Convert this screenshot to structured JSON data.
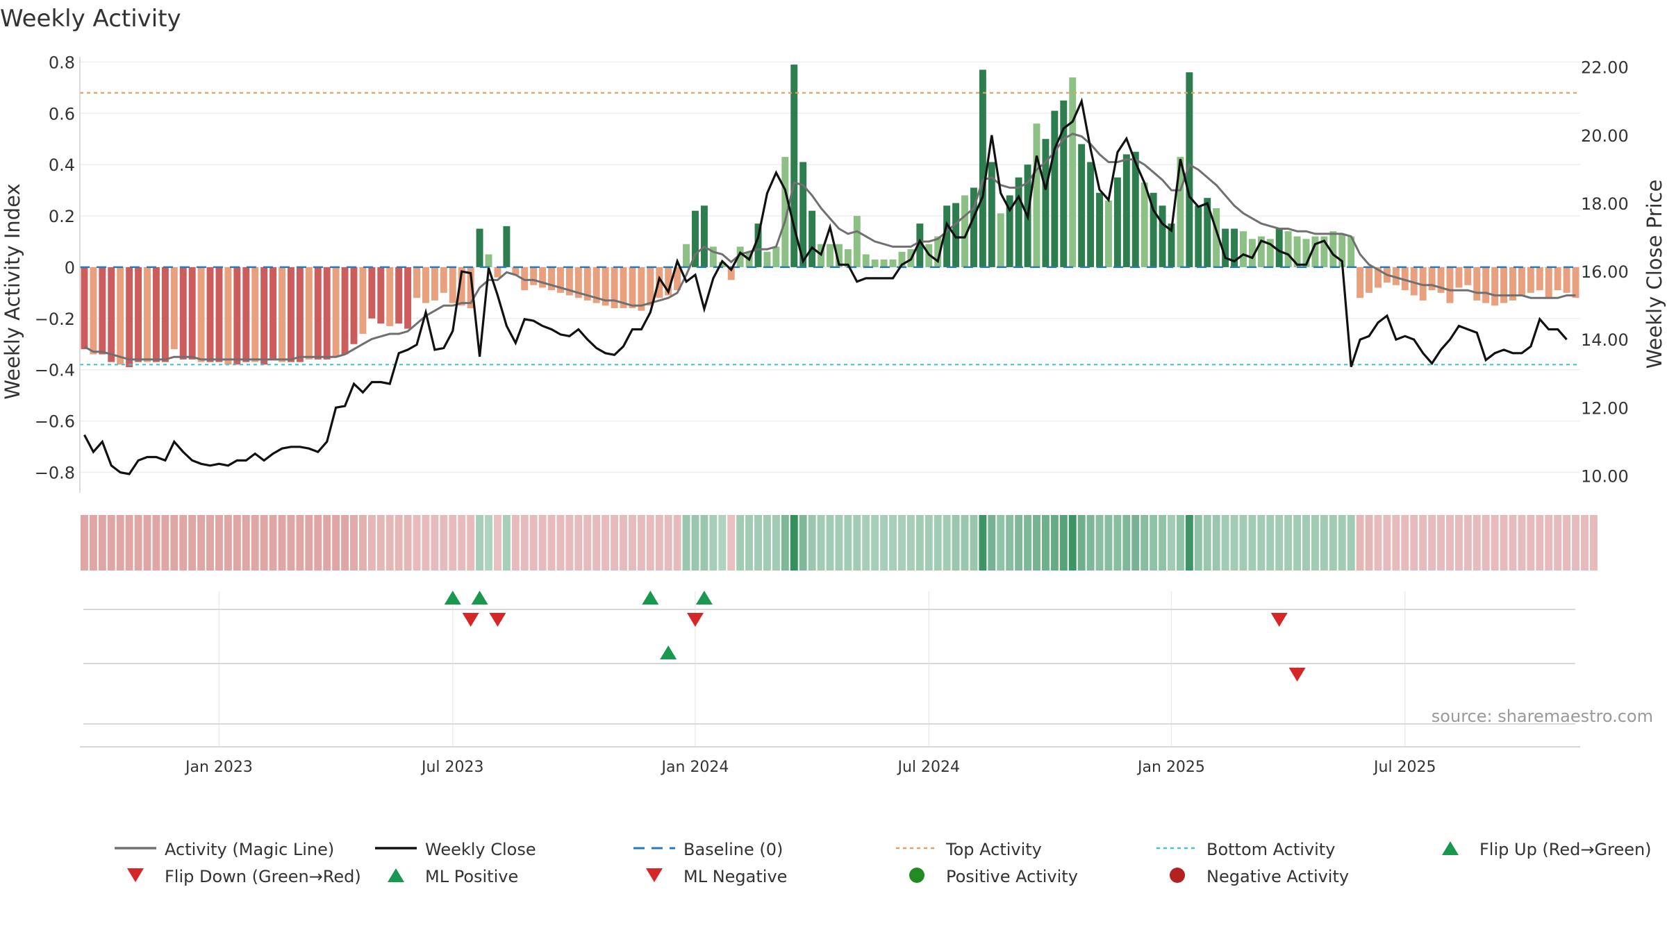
{
  "chart_data": {
    "type": "bar",
    "title": "Weekly Activity",
    "ylabel": "Weekly Activity Index",
    "y2label": "Weekly Close Price",
    "ylim": [
      -0.88,
      0.82
    ],
    "y2lim": [
      9.5,
      22.3
    ],
    "yticks": [
      0.8,
      0.6,
      0.4,
      0.2,
      0,
      -0.2,
      -0.4,
      -0.6,
      -0.8
    ],
    "ytick_labels": [
      "0.8",
      "0.6",
      "0.4",
      "0.2",
      "0",
      "−0.2",
      "−0.4",
      "−0.6",
      "−0.8"
    ],
    "y2ticks": [
      22,
      20,
      18,
      16,
      14,
      12,
      10
    ],
    "y2tick_labels": [
      "22.00",
      "20.00",
      "18.00",
      "16.00",
      "14.00",
      "12.00",
      "10.00"
    ],
    "xtick_labels": [
      "Jan 2023",
      "Jul 2023",
      "Jan 2024",
      "Jul 2024",
      "Jan 2025",
      "Jul 2025"
    ],
    "xtick_weeks": [
      15,
      41,
      68,
      94,
      121,
      147
    ],
    "top_activity": 0.68,
    "bottom_activity": -0.38,
    "baseline": 0,
    "source": "source: sharemaestro.com",
    "colors": {
      "pos_dark": "#2e7d4f",
      "pos_light": "#8cc084",
      "neg_dark": "#cd5c5c",
      "neg_light": "#e9a07f",
      "magic_line": "#707070",
      "close_line": "#111111",
      "baseline": "#2a7ab8",
      "top": "#e8a060",
      "bottom": "#3cc8d0",
      "up": "#1a9850",
      "down": "#d62728",
      "pos_dot": "#228b22",
      "neg_dot": "#b22222"
    },
    "activity": [
      -0.32,
      -0.34,
      -0.34,
      -0.37,
      -0.38,
      -0.39,
      -0.37,
      -0.37,
      -0.37,
      -0.37,
      -0.32,
      -0.36,
      -0.36,
      -0.37,
      -0.37,
      -0.37,
      -0.38,
      -0.38,
      -0.37,
      -0.37,
      -0.38,
      -0.36,
      -0.37,
      -0.37,
      -0.37,
      -0.36,
      -0.36,
      -0.36,
      -0.35,
      -0.34,
      -0.3,
      -0.26,
      -0.2,
      -0.22,
      -0.23,
      -0.22,
      -0.24,
      -0.12,
      -0.14,
      -0.13,
      -0.1,
      -0.14,
      -0.15,
      -0.16,
      0.15,
      0.05,
      -0.04,
      0.16,
      -0.03,
      -0.09,
      -0.07,
      -0.08,
      -0.09,
      -0.1,
      -0.11,
      -0.12,
      -0.13,
      -0.14,
      -0.15,
      -0.16,
      -0.16,
      -0.16,
      -0.17,
      -0.15,
      -0.12,
      -0.11,
      -0.09,
      0.09,
      0.22,
      0.24,
      0.08,
      0.02,
      -0.05,
      0.08,
      0.06,
      0.17,
      0.06,
      0.08,
      0.43,
      0.79,
      0.41,
      0.22,
      0.09,
      0.09,
      0.09,
      0.07,
      0.2,
      0.05,
      0.03,
      0.03,
      0.03,
      0.06,
      0.07,
      0.17,
      0.09,
      0.12,
      0.24,
      0.25,
      0.28,
      0.31,
      0.77,
      0.41,
      0.21,
      0.28,
      0.35,
      0.4,
      0.56,
      0.5,
      0.61,
      0.65,
      0.74,
      0.48,
      0.41,
      0.29,
      0.26,
      0.35,
      0.44,
      0.45,
      0.33,
      0.29,
      0.24,
      0.17,
      0.43,
      0.76,
      0.24,
      0.27,
      0.23,
      0.15,
      0.15,
      0.14,
      0.11,
      0.12,
      0.11,
      0.15,
      0.14,
      0.12,
      0.11,
      0.12,
      0.12,
      0.14,
      0.13,
      0.12,
      -0.12,
      -0.1,
      -0.08,
      -0.06,
      -0.07,
      -0.09,
      -0.11,
      -0.13,
      -0.09,
      -0.1,
      -0.14,
      -0.08,
      -0.07,
      -0.13,
      -0.14,
      -0.15,
      -0.14,
      -0.13,
      -0.11,
      -0.1,
      -0.09,
      -0.12,
      -0.09,
      -0.1,
      -0.12
    ],
    "magic_line": [
      -0.31,
      -0.33,
      -0.33,
      -0.34,
      -0.35,
      -0.36,
      -0.36,
      -0.36,
      -0.36,
      -0.36,
      -0.35,
      -0.35,
      -0.35,
      -0.36,
      -0.36,
      -0.36,
      -0.36,
      -0.36,
      -0.36,
      -0.36,
      -0.36,
      -0.36,
      -0.36,
      -0.36,
      -0.35,
      -0.35,
      -0.35,
      -0.35,
      -0.35,
      -0.34,
      -0.32,
      -0.3,
      -0.28,
      -0.27,
      -0.26,
      -0.26,
      -0.25,
      -0.22,
      -0.19,
      -0.17,
      -0.15,
      -0.15,
      -0.14,
      -0.14,
      -0.08,
      -0.05,
      -0.05,
      -0.02,
      -0.03,
      -0.05,
      -0.05,
      -0.06,
      -0.07,
      -0.08,
      -0.09,
      -0.1,
      -0.11,
      -0.12,
      -0.13,
      -0.13,
      -0.14,
      -0.15,
      -0.15,
      -0.14,
      -0.13,
      -0.12,
      -0.1,
      -0.03,
      0.05,
      0.08,
      0.06,
      0.05,
      0.02,
      0.05,
      0.06,
      0.07,
      0.07,
      0.08,
      0.18,
      0.33,
      0.32,
      0.28,
      0.23,
      0.19,
      0.15,
      0.13,
      0.14,
      0.12,
      0.1,
      0.09,
      0.08,
      0.08,
      0.08,
      0.1,
      0.1,
      0.11,
      0.14,
      0.17,
      0.2,
      0.23,
      0.34,
      0.35,
      0.32,
      0.31,
      0.31,
      0.33,
      0.38,
      0.41,
      0.45,
      0.5,
      0.52,
      0.51,
      0.48,
      0.44,
      0.41,
      0.41,
      0.42,
      0.42,
      0.4,
      0.37,
      0.34,
      0.3,
      0.3,
      0.4,
      0.38,
      0.35,
      0.32,
      0.28,
      0.24,
      0.21,
      0.19,
      0.17,
      0.16,
      0.15,
      0.15,
      0.14,
      0.14,
      0.13,
      0.13,
      0.13,
      0.13,
      0.12,
      0.05,
      0.01,
      -0.01,
      -0.03,
      -0.04,
      -0.05,
      -0.06,
      -0.07,
      -0.07,
      -0.08,
      -0.09,
      -0.09,
      -0.09,
      -0.1,
      -0.1,
      -0.11,
      -0.11,
      -0.11,
      -0.11,
      -0.12,
      -0.12,
      -0.12,
      -0.12,
      -0.11,
      -0.11
    ],
    "weekly_close": [
      11.2,
      10.7,
      11.0,
      10.3,
      10.1,
      10.05,
      10.45,
      10.55,
      10.55,
      10.45,
      11.0,
      10.7,
      10.45,
      10.35,
      10.3,
      10.35,
      10.3,
      10.45,
      10.45,
      10.65,
      10.45,
      10.65,
      10.8,
      10.85,
      10.85,
      10.8,
      10.7,
      11.0,
      12.0,
      12.05,
      12.7,
      12.45,
      12.75,
      12.75,
      12.7,
      13.6,
      13.7,
      13.85,
      14.8,
      13.7,
      13.75,
      14.25,
      16.0,
      15.95,
      13.5,
      16.1,
      15.3,
      14.4,
      13.9,
      14.6,
      14.55,
      14.4,
      14.3,
      14.15,
      14.1,
      14.3,
      14.0,
      13.75,
      13.6,
      13.55,
      13.8,
      14.3,
      14.3,
      14.8,
      15.8,
      15.4,
      16.3,
      15.7,
      15.9,
      14.9,
      15.8,
      16.3,
      16.05,
      16.55,
      16.35,
      17.0,
      18.3,
      18.9,
      18.4,
      17.3,
      16.3,
      16.7,
      16.5,
      17.3,
      16.2,
      16.2,
      15.7,
      15.8,
      15.8,
      15.8,
      15.8,
      16.2,
      16.35,
      16.9,
      16.5,
      16.3,
      17.4,
      17.0,
      17.0,
      17.6,
      18.2,
      20.0,
      18.3,
      17.8,
      18.2,
      17.6,
      19.4,
      18.4,
      19.6,
      20.2,
      20.4,
      21.0,
      19.6,
      18.4,
      18.1,
      19.5,
      19.9,
      19.2,
      18.6,
      17.8,
      17.4,
      17.2,
      19.3,
      18.2,
      17.9,
      18.0,
      17.2,
      16.4,
      16.3,
      16.5,
      16.4,
      16.9,
      16.8,
      16.6,
      16.5,
      16.2,
      16.2,
      16.8,
      16.9,
      16.5,
      16.3,
      13.2,
      14.0,
      14.1,
      14.5,
      14.7,
      14.0,
      14.1,
      14.0,
      13.6,
      13.3,
      13.7,
      14.0,
      14.4,
      14.3,
      14.2,
      13.4,
      13.6,
      13.7,
      13.6,
      13.6,
      13.8,
      14.6,
      14.3,
      14.3,
      14.0
    ],
    "strip_intensity": [
      0.45,
      0.45,
      0.45,
      0.45,
      0.45,
      0.45,
      0.45,
      0.45,
      0.45,
      0.45,
      0.45,
      0.45,
      0.45,
      0.45,
      0.45,
      0.45,
      0.45,
      0.45,
      0.45,
      0.45,
      0.45,
      0.45,
      0.45,
      0.45,
      0.45,
      0.45,
      0.45,
      0.45,
      0.45,
      0.45,
      0.4,
      0.35,
      0.3,
      0.3,
      0.3,
      0.3,
      0.3,
      0.25,
      0.25,
      0.25,
      0.25,
      0.25,
      0.25,
      0.25,
      0.25,
      0.2,
      0.2,
      0.25,
      0.25,
      0.25,
      0.25,
      0.25,
      0.25,
      0.25,
      0.25,
      0.25,
      0.25,
      0.25,
      0.25,
      0.25,
      0.25,
      0.25,
      0.25,
      0.25,
      0.25,
      0.25,
      0.25,
      0.35,
      0.35,
      0.35,
      0.25,
      0.2,
      0.2,
      0.3,
      0.3,
      0.3,
      0.3,
      0.3,
      0.5,
      0.95,
      0.5,
      0.35,
      0.3,
      0.3,
      0.3,
      0.3,
      0.3,
      0.25,
      0.25,
      0.25,
      0.25,
      0.25,
      0.25,
      0.3,
      0.3,
      0.3,
      0.3,
      0.35,
      0.35,
      0.35,
      0.9,
      0.55,
      0.4,
      0.45,
      0.5,
      0.5,
      0.55,
      0.6,
      0.65,
      0.75,
      0.9,
      0.6,
      0.5,
      0.45,
      0.45,
      0.45,
      0.5,
      0.55,
      0.45,
      0.4,
      0.4,
      0.3,
      0.4,
      0.9,
      0.4,
      0.35,
      0.35,
      0.3,
      0.3,
      0.3,
      0.3,
      0.3,
      0.3,
      0.3,
      0.3,
      0.3,
      0.3,
      0.3,
      0.3,
      0.3,
      0.3,
      0.3,
      0.3,
      0.3,
      0.25,
      0.25,
      0.25,
      0.25,
      0.25,
      0.25,
      0.25,
      0.25,
      0.25,
      0.25,
      0.25,
      0.25,
      0.25,
      0.25,
      0.25,
      0.25,
      0.25,
      0.25,
      0.25,
      0.25,
      0.25,
      0.25,
      0.25,
      0.25,
      0.25
    ],
    "flip_up_weeks": [
      41,
      44,
      63,
      69
    ],
    "flip_down_weeks": [
      43,
      46,
      68,
      133
    ],
    "ml_positive_weeks": [
      65
    ],
    "ml_negative_weeks": [
      135
    ],
    "legend": [
      {
        "label": "Activity (Magic Line)",
        "kind": "line",
        "color": "#707070"
      },
      {
        "label": "Weekly Close",
        "kind": "line",
        "color": "#111111"
      },
      {
        "label": "Baseline (0)",
        "kind": "dash",
        "color": "#2a7ab8"
      },
      {
        "label": "Top Activity",
        "kind": "dot-line",
        "color": "#e8a060"
      },
      {
        "label": "Bottom Activity",
        "kind": "dot-line",
        "color": "#3cc8d0"
      },
      {
        "label": "Flip Up (Red→Green)",
        "kind": "tri-up",
        "color": "#1a9850"
      },
      {
        "label": "Flip Down (Green→Red)",
        "kind": "tri-down",
        "color": "#d62728"
      },
      {
        "label": "ML Positive",
        "kind": "tri-up",
        "color": "#1a9850"
      },
      {
        "label": "ML Negative",
        "kind": "tri-down",
        "color": "#d62728"
      },
      {
        "label": "Positive Activity",
        "kind": "dot",
        "color": "#228b22"
      },
      {
        "label": "Negative Activity",
        "kind": "dot",
        "color": "#b22222"
      }
    ]
  }
}
